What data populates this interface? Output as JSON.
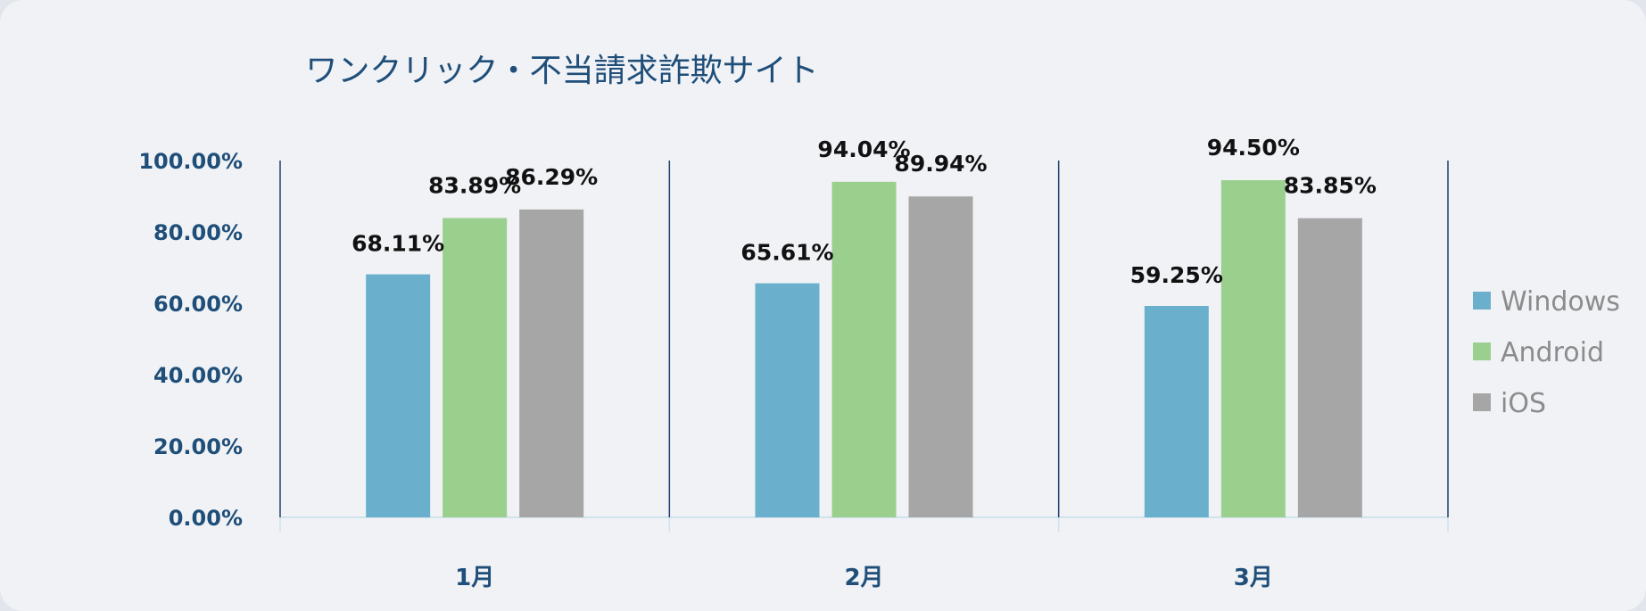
{
  "chart_data": {
    "type": "bar",
    "title": "ワンクリック・不当請求詐欺サイト",
    "categories": [
      "1月",
      "2月",
      "3月"
    ],
    "series": [
      {
        "name": "Windows",
        "values": [
          68.11,
          65.61,
          59.25
        ],
        "labels": [
          "68.11%",
          "65.61%",
          "59.25%"
        ],
        "color": "#6ab0cc"
      },
      {
        "name": "Android",
        "values": [
          83.89,
          94.04,
          94.5
        ],
        "labels": [
          "83.89%",
          "94.04%",
          "94.50%"
        ],
        "color": "#9bcf8e"
      },
      {
        "name": "iOS",
        "values": [
          86.29,
          89.94,
          83.85
        ],
        "labels": [
          "86.29%",
          "89.94%",
          "83.85%"
        ],
        "color": "#a6a6a6"
      }
    ],
    "y_ticks": [
      "0.00%",
      "20.00%",
      "40.00%",
      "60.00%",
      "80.00%",
      "100.00%"
    ],
    "y_tick_values": [
      0,
      20,
      40,
      60,
      80,
      100
    ],
    "ylim": [
      0,
      100
    ],
    "xlabel": "",
    "ylabel": "",
    "legend_position": "right",
    "grid": false,
    "colors": {
      "background": "#f0f2f6",
      "title": "#1f4e79",
      "axis_text": "#1f4e79",
      "separator": "#1f3f6e",
      "baseline": "#cfe3ec",
      "legend_text": "#8c8c8c",
      "data_label": "#111111"
    }
  }
}
